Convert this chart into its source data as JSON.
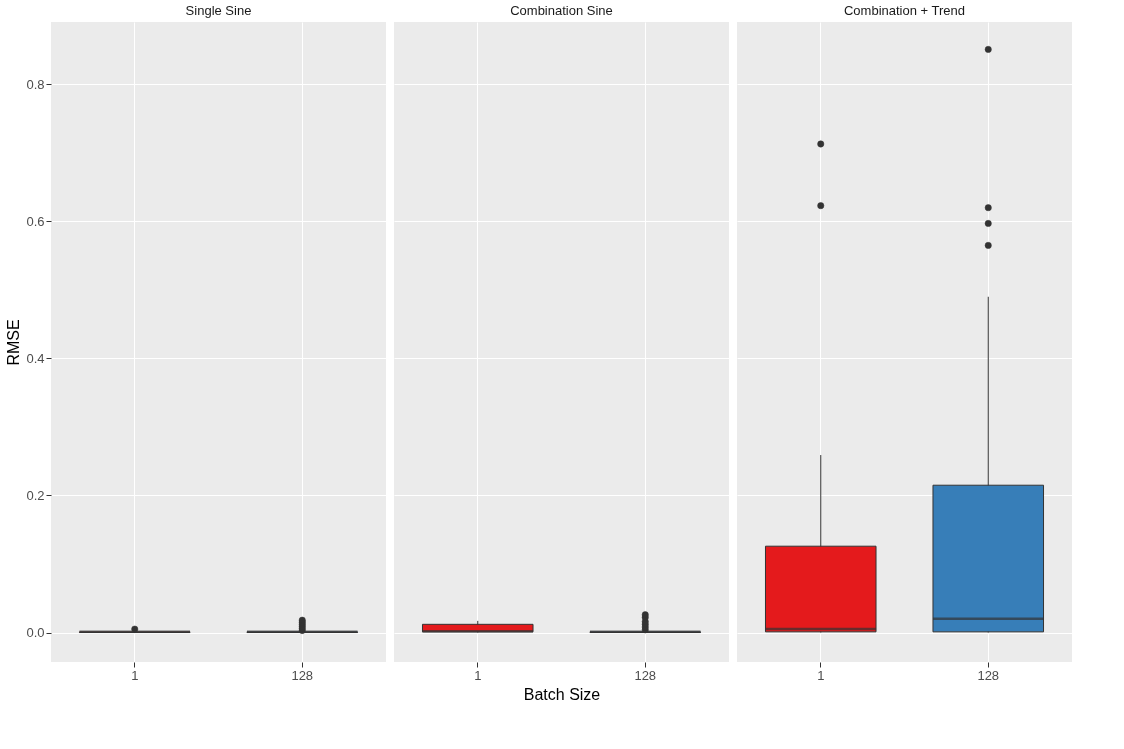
{
  "chart_data": [
    {
      "type": "box",
      "title": "Single Sine",
      "ylabel": "RMSE",
      "categories": [
        "1",
        "128"
      ],
      "colors": [
        "#e41a1c",
        "#377eb8"
      ],
      "ylim": [
        -0.043,
        0.891
      ],
      "yticks": [
        {
          "value": 0,
          "label": "0.0"
        },
        {
          "value": 0.2,
          "label": "0.2"
        },
        {
          "value": 0.4,
          "label": "0.4"
        },
        {
          "value": 0.6,
          "label": "0.6"
        },
        {
          "value": 0.8,
          "label": "0.8"
        }
      ],
      "grid": true,
      "boxes": [
        {
          "low": 0,
          "q1": 0,
          "median": 0.001,
          "q3": 0.001,
          "high": 0.002,
          "outliers": [
            0.005
          ]
        },
        {
          "low": 0,
          "q1": 0,
          "median": 0.001,
          "q3": 0.001,
          "high": 0.002,
          "outliers": [
            0.003,
            0.006,
            0.009,
            0.012,
            0.015,
            0.018
          ]
        }
      ]
    },
    {
      "type": "box",
      "title": "Combination Sine",
      "xlabel": "Batch Size",
      "categories": [
        "1",
        "128"
      ],
      "colors": [
        "#e41a1c",
        "#377eb8"
      ],
      "ylim": [
        -0.043,
        0.891
      ],
      "yticks": [
        0,
        0.2,
        0.4,
        0.6,
        0.8
      ],
      "grid": true,
      "tick_labels": "x",
      "boxes": [
        {
          "low": 0,
          "q1": 0.001,
          "median": 0.002,
          "q3": 0.012,
          "high": 0.017
        },
        {
          "low": 0,
          "q1": 0,
          "median": 0.001,
          "q3": 0.001,
          "high": 0.002,
          "outliers": [
            0.004,
            0.008,
            0.012,
            0.016,
            0.022,
            0.026
          ]
        }
      ]
    },
    {
      "type": "box",
      "title": "Combination + Trend",
      "categories": [
        "1",
        "128"
      ],
      "colors": [
        "#e41a1c",
        "#377eb8"
      ],
      "ylim": [
        -0.043,
        0.891
      ],
      "yticks": [
        0,
        0.2,
        0.4,
        0.6,
        0.8
      ],
      "grid": true,
      "tick_labels": "x",
      "boxes": [
        {
          "low": 0,
          "q1": 0.001,
          "median": 0.005,
          "q3": 0.126,
          "high": 0.259,
          "outliers": [
            0.623,
            0.713
          ]
        },
        {
          "low": 0,
          "q1": 0.001,
          "median": 0.02,
          "q3": 0.215,
          "high": 0.49,
          "outliers": [
            0.565,
            0.597,
            0.62,
            0.851
          ]
        }
      ]
    }
  ]
}
